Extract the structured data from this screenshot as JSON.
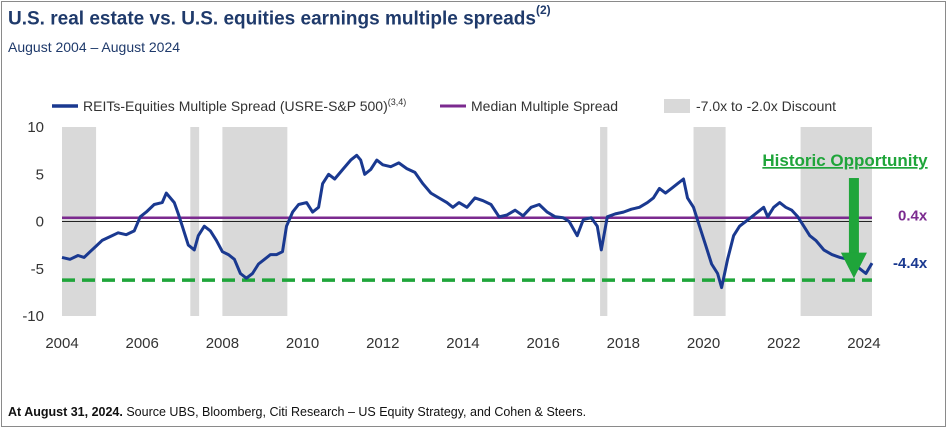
{
  "title": "U.S. real estate vs. U.S. equities earnings multiple spreads",
  "title_superscript": "(2)",
  "subtitle": "August 2004 – August 2024",
  "source_bold": "At August 31, 2024.",
  "source_rest": " Source UBS, Bloomberg, Citi Research – US Equity Strategy, and Cohen & Steers.",
  "colors": {
    "spread_line": "#1a3990",
    "median_line": "#7b2a8f",
    "discount_band": "#d9d9d9",
    "annotation_green": "#1fa53a",
    "title": "#1f3a6b"
  },
  "chart_data": {
    "type": "line",
    "title": "U.S. real estate vs. U.S. equities earnings multiple spreads",
    "xlabel": "",
    "ylabel": "",
    "xlim": [
      2004.0,
      2024.6
    ],
    "ylim": [
      -10,
      10
    ],
    "x_ticks": [
      2004,
      2006,
      2008,
      2010,
      2012,
      2014,
      2016,
      2018,
      2020,
      2022,
      2024
    ],
    "x_tick_labels": [
      "2004",
      "2006",
      "2008",
      "2010",
      "2012",
      "2014",
      "2016",
      "2018",
      "2020",
      "2022",
      "2024"
    ],
    "y_ticks": [
      10,
      5,
      0,
      -5,
      -10
    ],
    "y_tick_labels": [
      "10",
      "5",
      "0",
      "-5",
      "-10"
    ],
    "legend_position": "top",
    "legend": {
      "spread_label": "REITs-Equities Multiple Spread (USRE-S&P 500)",
      "spread_superscript": "(3,4)",
      "median_label": "Median Multiple Spread",
      "band_label": "-7.0x to -2.0x Discount"
    },
    "median_value": 0.4,
    "median_label": "0.4x",
    "current_value": -4.4,
    "current_label": "-4.4x",
    "historic_low_level": -6.2,
    "annotation": "Historic Opportunity",
    "discount_periods": [
      [
        2004.0,
        2004.85
      ],
      [
        2007.2,
        2007.42
      ],
      [
        2008.0,
        2009.62
      ],
      [
        2017.42,
        2017.6
      ],
      [
        2019.75,
        2020.55
      ],
      [
        2022.42,
        2024.2
      ]
    ],
    "series": [
      {
        "name": "REITs-Equities Multiple Spread (USRE-S&P 500)",
        "x": [
          2004.0,
          2004.2,
          2004.4,
          2004.55,
          2004.7,
          2004.85,
          2005.0,
          2005.2,
          2005.4,
          2005.6,
          2005.8,
          2005.95,
          2006.1,
          2006.3,
          2006.5,
          2006.6,
          2006.8,
          2006.9,
          2007.0,
          2007.15,
          2007.3,
          2007.4,
          2007.55,
          2007.7,
          2007.85,
          2008.0,
          2008.15,
          2008.3,
          2008.45,
          2008.6,
          2008.75,
          2008.9,
          2009.05,
          2009.2,
          2009.35,
          2009.5,
          2009.6,
          2009.75,
          2009.9,
          2010.1,
          2010.25,
          2010.4,
          2010.5,
          2010.65,
          2010.8,
          2011.0,
          2011.2,
          2011.35,
          2011.45,
          2011.55,
          2011.7,
          2011.85,
          2012.0,
          2012.2,
          2012.4,
          2012.6,
          2012.8,
          2013.0,
          2013.2,
          2013.4,
          2013.6,
          2013.75,
          2013.9,
          2014.1,
          2014.3,
          2014.5,
          2014.7,
          2014.9,
          2015.1,
          2015.3,
          2015.5,
          2015.7,
          2015.9,
          2016.1,
          2016.3,
          2016.5,
          2016.65,
          2016.85,
          2017.0,
          2017.2,
          2017.35,
          2017.45,
          2017.6,
          2017.8,
          2018.0,
          2018.2,
          2018.4,
          2018.6,
          2018.75,
          2018.9,
          2019.05,
          2019.2,
          2019.35,
          2019.5,
          2019.6,
          2019.75,
          2019.9,
          2020.05,
          2020.2,
          2020.35,
          2020.45,
          2020.6,
          2020.75,
          2020.9,
          2021.05,
          2021.2,
          2021.35,
          2021.5,
          2021.6,
          2021.75,
          2021.9,
          2022.05,
          2022.2,
          2022.35,
          2022.5,
          2022.65,
          2022.8,
          2023.0,
          2023.2,
          2023.4,
          2023.6,
          2023.75,
          2023.9,
          2024.05,
          2024.2
        ],
        "values": [
          -3.8,
          -4.0,
          -3.6,
          -3.8,
          -3.2,
          -2.6,
          -2.0,
          -1.6,
          -1.2,
          -1.4,
          -1.0,
          0.5,
          1.0,
          1.8,
          2.0,
          3.0,
          2.0,
          0.8,
          -0.5,
          -2.5,
          -3.0,
          -1.5,
          -0.5,
          -1.0,
          -2.0,
          -3.2,
          -3.5,
          -4.0,
          -5.5,
          -6.0,
          -5.5,
          -4.5,
          -4.0,
          -3.5,
          -3.5,
          -3.2,
          -0.5,
          1.0,
          1.8,
          2.0,
          1.0,
          1.5,
          4.0,
          5.0,
          4.5,
          5.5,
          6.5,
          7.0,
          6.5,
          5.0,
          5.5,
          6.5,
          6.0,
          5.8,
          6.2,
          5.6,
          5.2,
          4.0,
          3.0,
          2.5,
          2.0,
          1.5,
          2.0,
          1.5,
          2.5,
          2.2,
          1.8,
          0.5,
          0.7,
          1.2,
          0.6,
          1.5,
          1.8,
          1.0,
          0.5,
          0.4,
          0.0,
          -1.5,
          0.2,
          0.4,
          -0.5,
          -3.0,
          0.5,
          0.8,
          1.0,
          1.3,
          1.5,
          2.0,
          2.5,
          3.5,
          3.0,
          3.5,
          4.0,
          4.5,
          2.5,
          1.5,
          -0.5,
          -2.5,
          -4.5,
          -5.5,
          -7.0,
          -4.0,
          -1.5,
          -0.5,
          0.0,
          0.5,
          1.0,
          1.5,
          0.5,
          1.5,
          2.0,
          1.5,
          1.2,
          0.5,
          -0.5,
          -1.5,
          -2.0,
          -3.0,
          -3.5,
          -3.8,
          -4.0,
          -4.5,
          -5.0,
          -5.5,
          -4.4
        ]
      },
      {
        "name": "Median Multiple Spread",
        "x": [
          2004.0,
          2024.2
        ],
        "values": [
          0.4,
          0.4
        ]
      }
    ]
  }
}
